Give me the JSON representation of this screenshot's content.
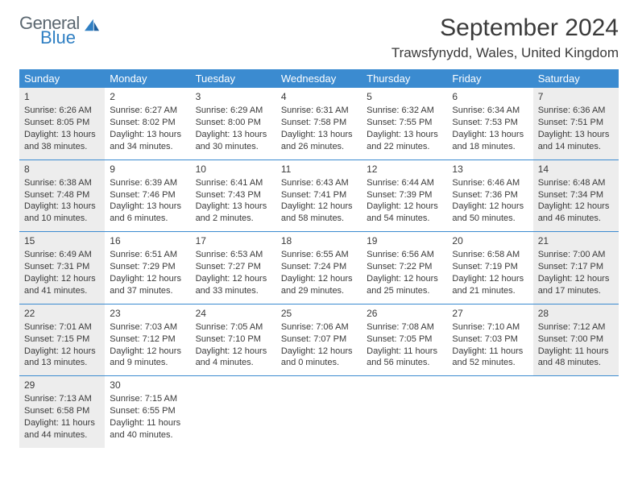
{
  "logo": {
    "general": "General",
    "blue": "Blue"
  },
  "title": "September 2024",
  "location": "Trawsfynydd, Wales, United Kingdom",
  "colors": {
    "header_bg": "#3b8bd0",
    "header_text": "#ffffff",
    "border": "#3b8bd0",
    "faded_bg": "#ededed",
    "text": "#3a3a3a",
    "logo_gray": "#5b6770",
    "logo_blue": "#2f7fc3"
  },
  "day_headers": [
    "Sunday",
    "Monday",
    "Tuesday",
    "Wednesday",
    "Thursday",
    "Friday",
    "Saturday"
  ],
  "weeks": [
    [
      {
        "num": "1",
        "faded": true,
        "sunrise": "Sunrise: 6:26 AM",
        "sunset": "Sunset: 8:05 PM",
        "dl1": "Daylight: 13 hours",
        "dl2": "and 38 minutes."
      },
      {
        "num": "2",
        "faded": false,
        "sunrise": "Sunrise: 6:27 AM",
        "sunset": "Sunset: 8:02 PM",
        "dl1": "Daylight: 13 hours",
        "dl2": "and 34 minutes."
      },
      {
        "num": "3",
        "faded": false,
        "sunrise": "Sunrise: 6:29 AM",
        "sunset": "Sunset: 8:00 PM",
        "dl1": "Daylight: 13 hours",
        "dl2": "and 30 minutes."
      },
      {
        "num": "4",
        "faded": false,
        "sunrise": "Sunrise: 6:31 AM",
        "sunset": "Sunset: 7:58 PM",
        "dl1": "Daylight: 13 hours",
        "dl2": "and 26 minutes."
      },
      {
        "num": "5",
        "faded": false,
        "sunrise": "Sunrise: 6:32 AM",
        "sunset": "Sunset: 7:55 PM",
        "dl1": "Daylight: 13 hours",
        "dl2": "and 22 minutes."
      },
      {
        "num": "6",
        "faded": false,
        "sunrise": "Sunrise: 6:34 AM",
        "sunset": "Sunset: 7:53 PM",
        "dl1": "Daylight: 13 hours",
        "dl2": "and 18 minutes."
      },
      {
        "num": "7",
        "faded": true,
        "sunrise": "Sunrise: 6:36 AM",
        "sunset": "Sunset: 7:51 PM",
        "dl1": "Daylight: 13 hours",
        "dl2": "and 14 minutes."
      }
    ],
    [
      {
        "num": "8",
        "faded": true,
        "sunrise": "Sunrise: 6:38 AM",
        "sunset": "Sunset: 7:48 PM",
        "dl1": "Daylight: 13 hours",
        "dl2": "and 10 minutes."
      },
      {
        "num": "9",
        "faded": false,
        "sunrise": "Sunrise: 6:39 AM",
        "sunset": "Sunset: 7:46 PM",
        "dl1": "Daylight: 13 hours",
        "dl2": "and 6 minutes."
      },
      {
        "num": "10",
        "faded": false,
        "sunrise": "Sunrise: 6:41 AM",
        "sunset": "Sunset: 7:43 PM",
        "dl1": "Daylight: 13 hours",
        "dl2": "and 2 minutes."
      },
      {
        "num": "11",
        "faded": false,
        "sunrise": "Sunrise: 6:43 AM",
        "sunset": "Sunset: 7:41 PM",
        "dl1": "Daylight: 12 hours",
        "dl2": "and 58 minutes."
      },
      {
        "num": "12",
        "faded": false,
        "sunrise": "Sunrise: 6:44 AM",
        "sunset": "Sunset: 7:39 PM",
        "dl1": "Daylight: 12 hours",
        "dl2": "and 54 minutes."
      },
      {
        "num": "13",
        "faded": false,
        "sunrise": "Sunrise: 6:46 AM",
        "sunset": "Sunset: 7:36 PM",
        "dl1": "Daylight: 12 hours",
        "dl2": "and 50 minutes."
      },
      {
        "num": "14",
        "faded": true,
        "sunrise": "Sunrise: 6:48 AM",
        "sunset": "Sunset: 7:34 PM",
        "dl1": "Daylight: 12 hours",
        "dl2": "and 46 minutes."
      }
    ],
    [
      {
        "num": "15",
        "faded": true,
        "sunrise": "Sunrise: 6:49 AM",
        "sunset": "Sunset: 7:31 PM",
        "dl1": "Daylight: 12 hours",
        "dl2": "and 41 minutes."
      },
      {
        "num": "16",
        "faded": false,
        "sunrise": "Sunrise: 6:51 AM",
        "sunset": "Sunset: 7:29 PM",
        "dl1": "Daylight: 12 hours",
        "dl2": "and 37 minutes."
      },
      {
        "num": "17",
        "faded": false,
        "sunrise": "Sunrise: 6:53 AM",
        "sunset": "Sunset: 7:27 PM",
        "dl1": "Daylight: 12 hours",
        "dl2": "and 33 minutes."
      },
      {
        "num": "18",
        "faded": false,
        "sunrise": "Sunrise: 6:55 AM",
        "sunset": "Sunset: 7:24 PM",
        "dl1": "Daylight: 12 hours",
        "dl2": "and 29 minutes."
      },
      {
        "num": "19",
        "faded": false,
        "sunrise": "Sunrise: 6:56 AM",
        "sunset": "Sunset: 7:22 PM",
        "dl1": "Daylight: 12 hours",
        "dl2": "and 25 minutes."
      },
      {
        "num": "20",
        "faded": false,
        "sunrise": "Sunrise: 6:58 AM",
        "sunset": "Sunset: 7:19 PM",
        "dl1": "Daylight: 12 hours",
        "dl2": "and 21 minutes."
      },
      {
        "num": "21",
        "faded": true,
        "sunrise": "Sunrise: 7:00 AM",
        "sunset": "Sunset: 7:17 PM",
        "dl1": "Daylight: 12 hours",
        "dl2": "and 17 minutes."
      }
    ],
    [
      {
        "num": "22",
        "faded": true,
        "sunrise": "Sunrise: 7:01 AM",
        "sunset": "Sunset: 7:15 PM",
        "dl1": "Daylight: 12 hours",
        "dl2": "and 13 minutes."
      },
      {
        "num": "23",
        "faded": false,
        "sunrise": "Sunrise: 7:03 AM",
        "sunset": "Sunset: 7:12 PM",
        "dl1": "Daylight: 12 hours",
        "dl2": "and 9 minutes."
      },
      {
        "num": "24",
        "faded": false,
        "sunrise": "Sunrise: 7:05 AM",
        "sunset": "Sunset: 7:10 PM",
        "dl1": "Daylight: 12 hours",
        "dl2": "and 4 minutes."
      },
      {
        "num": "25",
        "faded": false,
        "sunrise": "Sunrise: 7:06 AM",
        "sunset": "Sunset: 7:07 PM",
        "dl1": "Daylight: 12 hours",
        "dl2": "and 0 minutes."
      },
      {
        "num": "26",
        "faded": false,
        "sunrise": "Sunrise: 7:08 AM",
        "sunset": "Sunset: 7:05 PM",
        "dl1": "Daylight: 11 hours",
        "dl2": "and 56 minutes."
      },
      {
        "num": "27",
        "faded": false,
        "sunrise": "Sunrise: 7:10 AM",
        "sunset": "Sunset: 7:03 PM",
        "dl1": "Daylight: 11 hours",
        "dl2": "and 52 minutes."
      },
      {
        "num": "28",
        "faded": true,
        "sunrise": "Sunrise: 7:12 AM",
        "sunset": "Sunset: 7:00 PM",
        "dl1": "Daylight: 11 hours",
        "dl2": "and 48 minutes."
      }
    ],
    [
      {
        "num": "29",
        "faded": true,
        "sunrise": "Sunrise: 7:13 AM",
        "sunset": "Sunset: 6:58 PM",
        "dl1": "Daylight: 11 hours",
        "dl2": "and 44 minutes."
      },
      {
        "num": "30",
        "faded": false,
        "sunrise": "Sunrise: 7:15 AM",
        "sunset": "Sunset: 6:55 PM",
        "dl1": "Daylight: 11 hours",
        "dl2": "and 40 minutes."
      },
      null,
      null,
      null,
      null,
      null
    ]
  ]
}
